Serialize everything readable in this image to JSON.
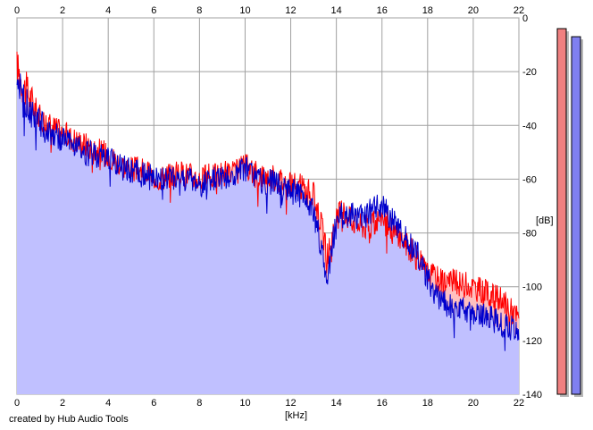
{
  "chart_data": {
    "type": "area",
    "xlabel": "[kHz]",
    "ylabel": "[dB]",
    "xlim": [
      0,
      22
    ],
    "ylim": [
      -140,
      0
    ],
    "x_ticks": [
      0,
      2,
      4,
      6,
      8,
      10,
      12,
      14,
      16,
      18,
      20,
      22
    ],
    "y_ticks": [
      0,
      -20,
      -40,
      -60,
      -80,
      -100,
      -120,
      -140
    ],
    "grid": true,
    "series": [
      {
        "color": "#ff0000",
        "x": [
          0,
          0.25,
          0.5,
          0.75,
          1,
          1.5,
          2,
          2.5,
          3,
          3.5,
          4,
          4.5,
          5,
          5.5,
          6,
          6.5,
          7,
          7.5,
          8,
          8.5,
          9,
          9.5,
          10,
          10.5,
          11,
          11.5,
          12,
          12.5,
          13,
          13.3,
          13.6,
          13.9,
          14.2,
          14.5,
          15,
          15.5,
          16,
          16.5,
          17,
          17.5,
          18,
          18.5,
          19,
          19.5,
          20,
          20.5,
          21,
          21.5,
          22
        ],
        "values": [
          -18,
          -25,
          -28,
          -33,
          -37,
          -40,
          -43,
          -45,
          -47,
          -49,
          -51,
          -54,
          -56,
          -57,
          -59,
          -59,
          -58,
          -58,
          -60,
          -59,
          -58,
          -58,
          -55,
          -58,
          -59,
          -60,
          -62,
          -63,
          -66,
          -75,
          -89,
          -78,
          -71,
          -74,
          -77,
          -78,
          -73,
          -80,
          -83,
          -89,
          -95,
          -97,
          -98,
          -99,
          -100,
          -102,
          -104,
          -107,
          -112
        ]
      },
      {
        "color": "#0000cc",
        "x": [
          0,
          0.25,
          0.5,
          0.75,
          1,
          1.5,
          2,
          2.5,
          3,
          3.5,
          4,
          4.5,
          5,
          5.5,
          6,
          6.5,
          7,
          7.5,
          8,
          8.5,
          9,
          9.5,
          10,
          10.5,
          11,
          11.5,
          12,
          12.5,
          13,
          13.3,
          13.6,
          13.9,
          14.2,
          14.5,
          15,
          15.5,
          16,
          16.5,
          17,
          17.5,
          18,
          18.5,
          19,
          19.5,
          20,
          20.5,
          21,
          21.5,
          22
        ],
        "values": [
          -18,
          -30,
          -33,
          -37,
          -39,
          -43,
          -45,
          -48,
          -50,
          -51,
          -52,
          -55,
          -57,
          -58,
          -60,
          -60,
          -59,
          -60,
          -62,
          -61,
          -59,
          -60,
          -56,
          -60,
          -61,
          -62,
          -64,
          -66,
          -72,
          -84,
          -97,
          -80,
          -71,
          -73,
          -74,
          -72,
          -69,
          -76,
          -82,
          -87,
          -97,
          -105,
          -107,
          -108,
          -110,
          -111,
          -113,
          -115,
          -117
        ]
      }
    ],
    "level_meters": [
      {
        "color": "#f08080",
        "level_db": -4
      },
      {
        "color": "#8080f0",
        "level_db": -7
      }
    ]
  },
  "footer": {
    "credit": "created by Hub Audio Tools"
  }
}
